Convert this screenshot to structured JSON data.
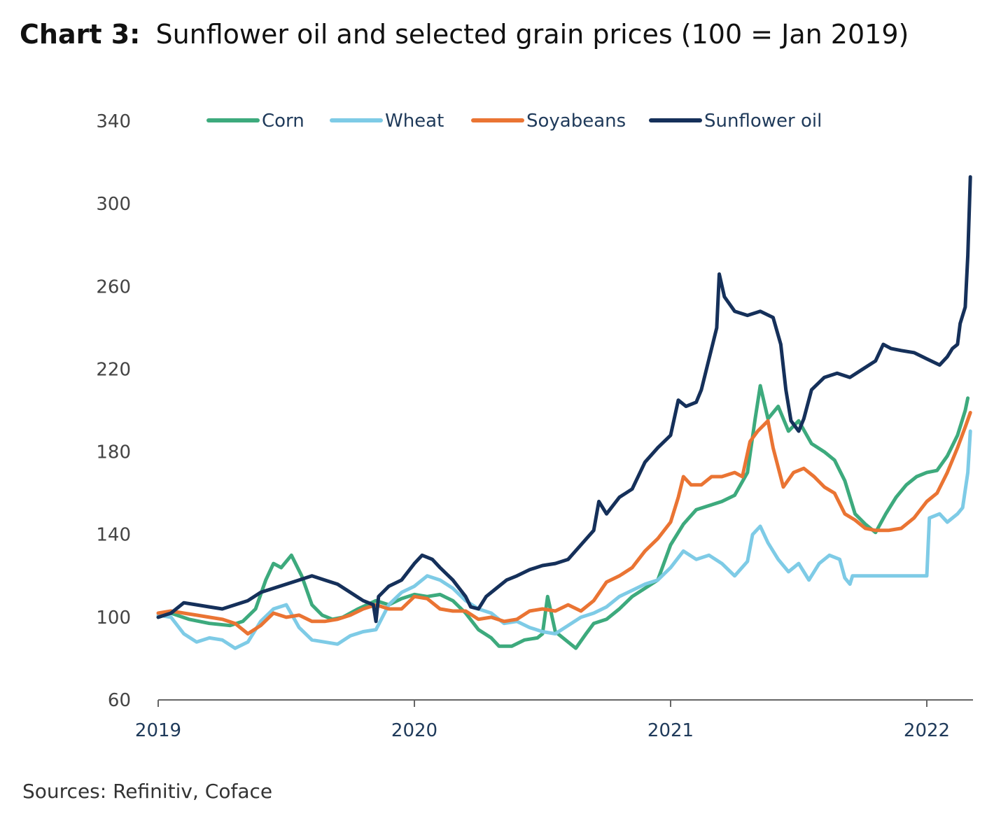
{
  "chart_data": {
    "type": "line",
    "title_prefix": "Chart 3:",
    "title": "Sunflower oil and selected grain prices (100 = Jan 2019)",
    "source": "Sources: Refinitiv, Coface",
    "ylim": [
      60,
      340
    ],
    "yticks": [
      "60",
      "100",
      "140",
      "180",
      "220",
      "260",
      "300",
      "340"
    ],
    "xlim": [
      2019.0,
      2022.17
    ],
    "xticks": [
      {
        "value": 2019,
        "label": "2019"
      },
      {
        "value": 2020,
        "label": "2020"
      },
      {
        "value": 2021,
        "label": "2021"
      },
      {
        "value": 2022,
        "label": "2022"
      }
    ],
    "legend_position": "top",
    "series": [
      {
        "name": "Corn",
        "color": "#3daa7d",
        "points": [
          [
            2019.0,
            100
          ],
          [
            2019.05,
            102
          ],
          [
            2019.12,
            99
          ],
          [
            2019.2,
            97
          ],
          [
            2019.28,
            96
          ],
          [
            2019.33,
            98
          ],
          [
            2019.38,
            104
          ],
          [
            2019.42,
            118
          ],
          [
            2019.45,
            126
          ],
          [
            2019.48,
            124
          ],
          [
            2019.52,
            130
          ],
          [
            2019.56,
            120
          ],
          [
            2019.6,
            106
          ],
          [
            2019.64,
            101
          ],
          [
            2019.68,
            99
          ],
          [
            2019.72,
            100
          ],
          [
            2019.78,
            104
          ],
          [
            2019.85,
            108
          ],
          [
            2019.9,
            106
          ],
          [
            2019.95,
            109
          ],
          [
            2020.0,
            111
          ],
          [
            2020.05,
            110
          ],
          [
            2020.1,
            111
          ],
          [
            2020.15,
            108
          ],
          [
            2020.2,
            102
          ],
          [
            2020.25,
            94
          ],
          [
            2020.3,
            90
          ],
          [
            2020.33,
            86
          ],
          [
            2020.38,
            86
          ],
          [
            2020.43,
            89
          ],
          [
            2020.48,
            90
          ],
          [
            2020.5,
            92
          ],
          [
            2020.52,
            110
          ],
          [
            2020.55,
            93
          ],
          [
            2020.6,
            88
          ],
          [
            2020.63,
            85
          ],
          [
            2020.67,
            92
          ],
          [
            2020.7,
            97
          ],
          [
            2020.75,
            99
          ],
          [
            2020.8,
            104
          ],
          [
            2020.85,
            110
          ],
          [
            2020.9,
            114
          ],
          [
            2020.95,
            118
          ],
          [
            2021.0,
            135
          ],
          [
            2021.05,
            145
          ],
          [
            2021.1,
            152
          ],
          [
            2021.15,
            154
          ],
          [
            2021.2,
            156
          ],
          [
            2021.25,
            159
          ],
          [
            2021.3,
            170
          ],
          [
            2021.33,
            196
          ],
          [
            2021.35,
            212
          ],
          [
            2021.38,
            196
          ],
          [
            2021.42,
            202
          ],
          [
            2021.46,
            190
          ],
          [
            2021.5,
            195
          ],
          [
            2021.55,
            184
          ],
          [
            2021.6,
            180
          ],
          [
            2021.64,
            176
          ],
          [
            2021.68,
            166
          ],
          [
            2021.72,
            150
          ],
          [
            2021.76,
            145
          ],
          [
            2021.8,
            141
          ],
          [
            2021.84,
            150
          ],
          [
            2021.88,
            158
          ],
          [
            2021.92,
            164
          ],
          [
            2021.96,
            168
          ],
          [
            2022.0,
            170
          ],
          [
            2022.04,
            171
          ],
          [
            2022.08,
            178
          ],
          [
            2022.12,
            188
          ],
          [
            2022.15,
            200
          ],
          [
            2022.16,
            206
          ]
        ]
      },
      {
        "name": "Wheat",
        "color": "#7ecbe6",
        "points": [
          [
            2019.0,
            101
          ],
          [
            2019.05,
            100
          ],
          [
            2019.1,
            92
          ],
          [
            2019.15,
            88
          ],
          [
            2019.2,
            90
          ],
          [
            2019.25,
            89
          ],
          [
            2019.3,
            85
          ],
          [
            2019.35,
            88
          ],
          [
            2019.4,
            98
          ],
          [
            2019.45,
            104
          ],
          [
            2019.5,
            106
          ],
          [
            2019.55,
            95
          ],
          [
            2019.6,
            89
          ],
          [
            2019.65,
            88
          ],
          [
            2019.7,
            87
          ],
          [
            2019.75,
            91
          ],
          [
            2019.8,
            93
          ],
          [
            2019.85,
            94
          ],
          [
            2019.9,
            106
          ],
          [
            2019.95,
            112
          ],
          [
            2020.0,
            115
          ],
          [
            2020.05,
            120
          ],
          [
            2020.1,
            118
          ],
          [
            2020.15,
            114
          ],
          [
            2020.2,
            108
          ],
          [
            2020.25,
            104
          ],
          [
            2020.3,
            102
          ],
          [
            2020.35,
            97
          ],
          [
            2020.4,
            98
          ],
          [
            2020.45,
            95
          ],
          [
            2020.5,
            93
          ],
          [
            2020.55,
            92
          ],
          [
            2020.6,
            96
          ],
          [
            2020.65,
            100
          ],
          [
            2020.7,
            102
          ],
          [
            2020.75,
            105
          ],
          [
            2020.8,
            110
          ],
          [
            2020.85,
            113
          ],
          [
            2020.9,
            116
          ],
          [
            2020.95,
            118
          ],
          [
            2021.0,
            124
          ],
          [
            2021.05,
            132
          ],
          [
            2021.1,
            128
          ],
          [
            2021.15,
            130
          ],
          [
            2021.2,
            126
          ],
          [
            2021.25,
            120
          ],
          [
            2021.3,
            127
          ],
          [
            2021.32,
            140
          ],
          [
            2021.35,
            144
          ],
          [
            2021.38,
            136
          ],
          [
            2021.42,
            128
          ],
          [
            2021.46,
            122
          ],
          [
            2021.5,
            126
          ],
          [
            2021.54,
            118
          ],
          [
            2021.58,
            126
          ],
          [
            2021.62,
            130
          ],
          [
            2021.66,
            128
          ],
          [
            2021.68,
            119
          ],
          [
            2021.7,
            116
          ],
          [
            2021.71,
            120
          ],
          [
            2021.8,
            120
          ],
          [
            2021.9,
            120
          ],
          [
            2022.0,
            120
          ],
          [
            2022.01,
            148
          ],
          [
            2022.05,
            150
          ],
          [
            2022.08,
            146
          ],
          [
            2022.12,
            150
          ],
          [
            2022.14,
            153
          ],
          [
            2022.16,
            170
          ],
          [
            2022.17,
            190
          ]
        ]
      },
      {
        "name": "Soyabeans",
        "color": "#ea7433",
        "points": [
          [
            2019.0,
            102
          ],
          [
            2019.05,
            103
          ],
          [
            2019.1,
            102
          ],
          [
            2019.15,
            101
          ],
          [
            2019.2,
            100
          ],
          [
            2019.25,
            99
          ],
          [
            2019.3,
            97
          ],
          [
            2019.35,
            92
          ],
          [
            2019.4,
            96
          ],
          [
            2019.45,
            102
          ],
          [
            2019.5,
            100
          ],
          [
            2019.55,
            101
          ],
          [
            2019.6,
            98
          ],
          [
            2019.65,
            98
          ],
          [
            2019.7,
            99
          ],
          [
            2019.75,
            101
          ],
          [
            2019.8,
            104
          ],
          [
            2019.85,
            106
          ],
          [
            2019.9,
            104
          ],
          [
            2019.95,
            104
          ],
          [
            2020.0,
            110
          ],
          [
            2020.05,
            109
          ],
          [
            2020.1,
            104
          ],
          [
            2020.15,
            103
          ],
          [
            2020.2,
            103
          ],
          [
            2020.25,
            99
          ],
          [
            2020.3,
            100
          ],
          [
            2020.35,
            98
          ],
          [
            2020.4,
            99
          ],
          [
            2020.45,
            103
          ],
          [
            2020.5,
            104
          ],
          [
            2020.55,
            103
          ],
          [
            2020.6,
            106
          ],
          [
            2020.65,
            103
          ],
          [
            2020.7,
            108
          ],
          [
            2020.75,
            117
          ],
          [
            2020.8,
            120
          ],
          [
            2020.85,
            124
          ],
          [
            2020.9,
            132
          ],
          [
            2020.95,
            138
          ],
          [
            2021.0,
            146
          ],
          [
            2021.03,
            158
          ],
          [
            2021.05,
            168
          ],
          [
            2021.08,
            164
          ],
          [
            2021.12,
            164
          ],
          [
            2021.16,
            168
          ],
          [
            2021.2,
            168
          ],
          [
            2021.25,
            170
          ],
          [
            2021.28,
            168
          ],
          [
            2021.31,
            185
          ],
          [
            2021.34,
            190
          ],
          [
            2021.38,
            195
          ],
          [
            2021.4,
            182
          ],
          [
            2021.44,
            163
          ],
          [
            2021.48,
            170
          ],
          [
            2021.52,
            172
          ],
          [
            2021.56,
            168
          ],
          [
            2021.6,
            163
          ],
          [
            2021.64,
            160
          ],
          [
            2021.68,
            150
          ],
          [
            2021.72,
            147
          ],
          [
            2021.76,
            143
          ],
          [
            2021.8,
            142
          ],
          [
            2021.85,
            142
          ],
          [
            2021.9,
            143
          ],
          [
            2021.95,
            148
          ],
          [
            2022.0,
            156
          ],
          [
            2022.04,
            160
          ],
          [
            2022.08,
            170
          ],
          [
            2022.12,
            182
          ],
          [
            2022.15,
            192
          ],
          [
            2022.17,
            199
          ]
        ]
      },
      {
        "name": "Sunflower oil",
        "color": "#15305a",
        "points": [
          [
            2019.0,
            100
          ],
          [
            2019.05,
            102
          ],
          [
            2019.1,
            107
          ],
          [
            2019.15,
            106
          ],
          [
            2019.2,
            105
          ],
          [
            2019.25,
            104
          ],
          [
            2019.3,
            106
          ],
          [
            2019.35,
            108
          ],
          [
            2019.4,
            112
          ],
          [
            2019.45,
            114
          ],
          [
            2019.5,
            116
          ],
          [
            2019.55,
            118
          ],
          [
            2019.6,
            120
          ],
          [
            2019.65,
            118
          ],
          [
            2019.7,
            116
          ],
          [
            2019.75,
            112
          ],
          [
            2019.8,
            108
          ],
          [
            2019.84,
            106
          ],
          [
            2019.85,
            98
          ],
          [
            2019.86,
            110
          ],
          [
            2019.9,
            115
          ],
          [
            2019.95,
            118
          ],
          [
            2020.0,
            126
          ],
          [
            2020.03,
            130
          ],
          [
            2020.07,
            128
          ],
          [
            2020.1,
            124
          ],
          [
            2020.15,
            118
          ],
          [
            2020.2,
            110
          ],
          [
            2020.22,
            105
          ],
          [
            2020.25,
            104
          ],
          [
            2020.28,
            110
          ],
          [
            2020.32,
            114
          ],
          [
            2020.36,
            118
          ],
          [
            2020.4,
            120
          ],
          [
            2020.45,
            123
          ],
          [
            2020.5,
            125
          ],
          [
            2020.55,
            126
          ],
          [
            2020.6,
            128
          ],
          [
            2020.65,
            135
          ],
          [
            2020.7,
            142
          ],
          [
            2020.72,
            156
          ],
          [
            2020.75,
            150
          ],
          [
            2020.8,
            158
          ],
          [
            2020.85,
            162
          ],
          [
            2020.9,
            175
          ],
          [
            2020.95,
            182
          ],
          [
            2021.0,
            188
          ],
          [
            2021.03,
            205
          ],
          [
            2021.06,
            202
          ],
          [
            2021.1,
            204
          ],
          [
            2021.12,
            210
          ],
          [
            2021.15,
            225
          ],
          [
            2021.18,
            240
          ],
          [
            2021.19,
            266
          ],
          [
            2021.21,
            255
          ],
          [
            2021.25,
            248
          ],
          [
            2021.3,
            246
          ],
          [
            2021.35,
            248
          ],
          [
            2021.4,
            245
          ],
          [
            2021.43,
            232
          ],
          [
            2021.45,
            210
          ],
          [
            2021.47,
            195
          ],
          [
            2021.5,
            190
          ],
          [
            2021.52,
            196
          ],
          [
            2021.55,
            210
          ],
          [
            2021.6,
            216
          ],
          [
            2021.65,
            218
          ],
          [
            2021.7,
            216
          ],
          [
            2021.75,
            220
          ],
          [
            2021.8,
            224
          ],
          [
            2021.83,
            232
          ],
          [
            2021.86,
            230
          ],
          [
            2021.9,
            229
          ],
          [
            2021.95,
            228
          ],
          [
            2022.0,
            225
          ],
          [
            2022.05,
            222
          ],
          [
            2022.08,
            226
          ],
          [
            2022.1,
            230
          ],
          [
            2022.12,
            232
          ],
          [
            2022.13,
            242
          ],
          [
            2022.15,
            250
          ],
          [
            2022.16,
            275
          ],
          [
            2022.17,
            313
          ]
        ]
      }
    ]
  }
}
